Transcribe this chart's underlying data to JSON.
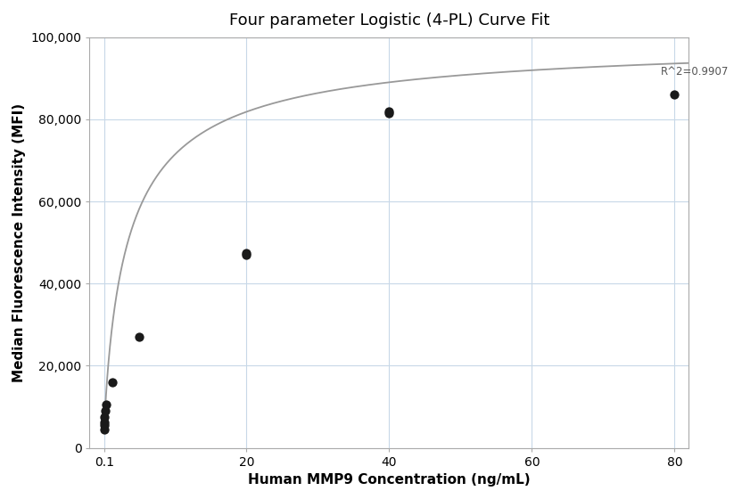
{
  "title": "Four parameter Logistic (4-PL) Curve Fit",
  "xlabel": "Human MMP9 Concentration (ng/mL)",
  "ylabel": "Median Fluorescence Intensity (MFI)",
  "scatter_x": [
    0.1,
    0.1,
    0.1,
    0.12,
    0.15,
    0.3,
    1.25,
    5,
    20,
    20,
    40,
    40,
    80
  ],
  "scatter_y": [
    4500,
    5500,
    6200,
    7500,
    9000,
    10500,
    16000,
    27000,
    47000,
    47500,
    81500,
    82000,
    86000
  ],
  "r_squared": "R^2=0.9907",
  "xlim_data": [
    -2,
    82
  ],
  "ylim": [
    0,
    100000
  ],
  "yticks": [
    0,
    20000,
    40000,
    60000,
    80000,
    100000
  ],
  "xtick_positions": [
    0.1,
    20,
    40,
    60,
    80
  ],
  "xtick_labels": [
    "0.1",
    "20",
    "40",
    "60",
    "80"
  ],
  "4pl_A": 2000,
  "4pl_B": 0.85,
  "4pl_C": 3.5,
  "4pl_D": 100000,
  "dot_color": "#1a1a1a",
  "curve_color": "#999999",
  "grid_color": "#c8d8e8",
  "background_color": "#ffffff",
  "title_fontsize": 13,
  "label_fontsize": 11
}
